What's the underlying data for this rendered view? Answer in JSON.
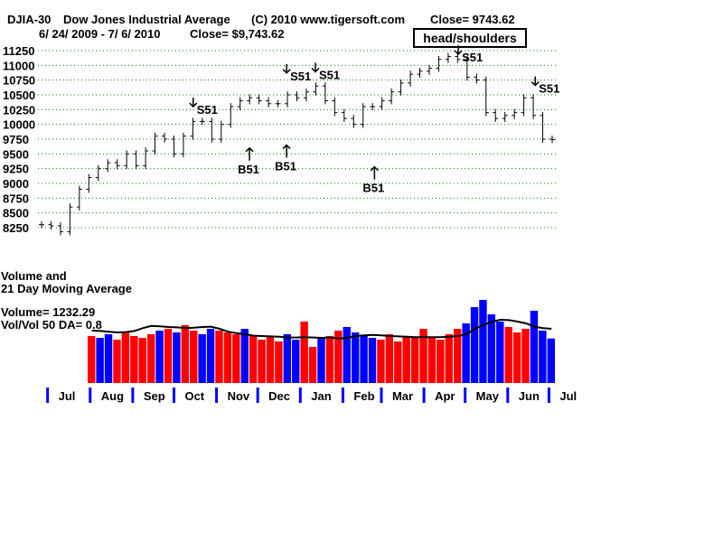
{
  "header": {
    "symbol": "DJIA-30",
    "name": "Dow Jones Industrial Average",
    "copyright": "(C) 2010 www.tigersoft.com",
    "close_top": "Close=  9743.62",
    "date_range": "6/ 24/ 2009 -  7/ 6/ 2010",
    "close_sub": "Close= $9,743.62",
    "pattern_label": "head/shoulders"
  },
  "volume_panel": {
    "title_line1": "Volume and",
    "title_line2": "21 Day Moving Average",
    "volume_text": "Volume= 1232.29",
    "ratio_text": "Vol/Vol 50 DA= 0.8"
  },
  "colors": {
    "up": "#ff0000",
    "down": "#0000ff",
    "grid": "#008000",
    "ma": "#000000"
  },
  "chart_data": {
    "type": "bar",
    "title": "DJIA-30  Dow Jones Industrial Average",
    "ylim": [
      8000,
      11400
    ],
    "yticks": [
      8250,
      8500,
      8750,
      9000,
      9250,
      9500,
      9750,
      10000,
      10250,
      10500,
      10750,
      11000,
      11250
    ],
    "grid": true,
    "x_start": "2009-06-24",
    "x_end": "2010-07-06",
    "months": [
      {
        "label": "Jul",
        "date": "2009-07-01"
      },
      {
        "label": "Aug",
        "date": "2009-08-01"
      },
      {
        "label": "Sep",
        "date": "2009-09-01"
      },
      {
        "label": "Oct",
        "date": "2009-10-01"
      },
      {
        "label": "Nov",
        "date": "2009-11-01"
      },
      {
        "label": "Dec",
        "date": "2009-12-01"
      },
      {
        "label": "Jan",
        "date": "2010-01-01"
      },
      {
        "label": "Feb",
        "date": "2010-02-01"
      },
      {
        "label": "Mar",
        "date": "2010-03-01"
      },
      {
        "label": "Apr",
        "date": "2010-04-01"
      },
      {
        "label": "May",
        "date": "2010-05-01"
      },
      {
        "label": "Jun",
        "date": "2010-06-01"
      },
      {
        "label": "Jul",
        "date": "2010-07-01"
      }
    ],
    "weekly_close": [
      8300,
      8280,
      8180,
      8600,
      8900,
      9100,
      9250,
      9350,
      9300,
      9500,
      9300,
      9550,
      9800,
      9750,
      9500,
      9800,
      10050,
      10050,
      9750,
      10000,
      10300,
      10400,
      10450,
      10400,
      10350,
      10350,
      10500,
      10450,
      10550,
      10650,
      10400,
      10200,
      10100,
      10000,
      10300,
      10300,
      10400,
      10550,
      10700,
      10850,
      10900,
      10950,
      11100,
      11150,
      11100,
      10800,
      10750,
      10200,
      10100,
      10150,
      10200,
      10450,
      10150,
      9750,
      9743.62
    ],
    "weekly_volume": [
      1300,
      1250,
      1350,
      1200,
      1400,
      1300,
      1250,
      1350,
      1450,
      1500,
      1400,
      1600,
      1450,
      1350,
      1500,
      1450,
      1400,
      1350,
      1500,
      1300,
      1200,
      1300,
      1150,
      1350,
      1200,
      1700,
      1000,
      1250,
      1300,
      1450,
      1550,
      1400,
      1300,
      1250,
      1200,
      1350,
      1150,
      1300,
      1250,
      1500,
      1250,
      1200,
      1350,
      1500,
      1650,
      2100,
      2300,
      1900,
      1700,
      1550,
      1400,
      1500,
      2000,
      1450,
      1232.29
    ],
    "volume_ma": [
      1450,
      1440,
      1420,
      1400,
      1410,
      1440,
      1520,
      1580,
      1570,
      1550,
      1540,
      1520,
      1530,
      1550,
      1560,
      1500,
      1420,
      1380,
      1350,
      1310,
      1300,
      1290,
      1280,
      1260,
      1260,
      1270,
      1260,
      1250,
      1260,
      1230,
      1250,
      1300,
      1320,
      1330,
      1320,
      1300,
      1290,
      1280,
      1270,
      1270,
      1270,
      1270,
      1280,
      1300,
      1350,
      1500,
      1600,
      1700,
      1750,
      1740,
      1700,
      1650,
      1560,
      1520,
      1500
    ],
    "vol_ylim": [
      0,
      3600
    ],
    "signals": [
      {
        "label": "S51",
        "dir": "down",
        "date": "2009-10-15",
        "level": 10300
      },
      {
        "label": "S51",
        "dir": "down",
        "date": "2009-12-22",
        "level": 10870
      },
      {
        "label": "S51",
        "dir": "down",
        "date": "2010-01-12",
        "level": 10890
      },
      {
        "label": "S51",
        "dir": "down",
        "date": "2010-04-26",
        "level": 11400
      },
      {
        "label": "S51",
        "dir": "down",
        "date": "2010-06-21",
        "level": 10660
      },
      {
        "label": "B51",
        "dir": "up",
        "date": "2009-11-25",
        "level": 9600
      },
      {
        "label": "B51",
        "dir": "up",
        "date": "2009-12-22",
        "level": 9650
      },
      {
        "label": "B51",
        "dir": "up",
        "date": "2010-02-24",
        "level": 9280
      }
    ]
  }
}
